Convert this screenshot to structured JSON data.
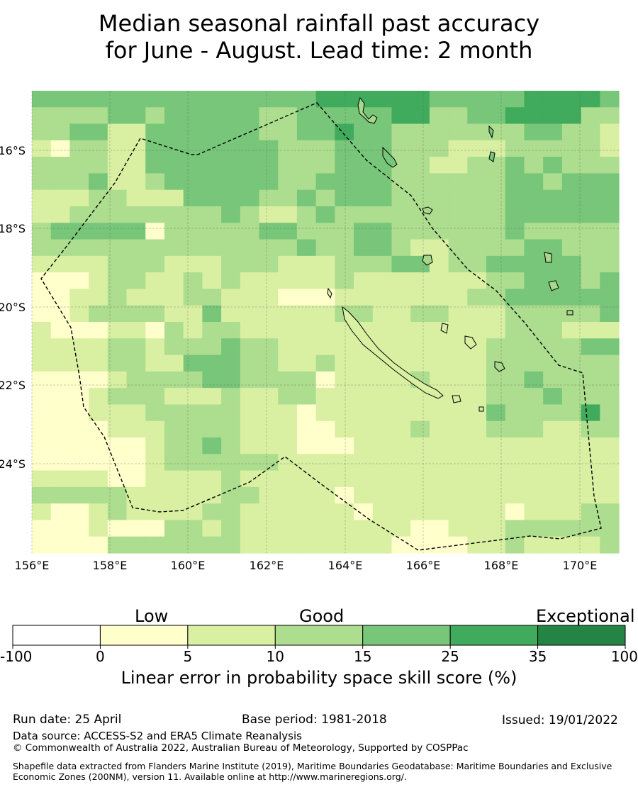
{
  "title_line1": "Median seasonal rainfall past accuracy",
  "title_line2": "for June - August. Lead time: 2 month",
  "map": {
    "lat_labels": [
      "16°S",
      "18°S",
      "20°S",
      "22°S",
      "24°S"
    ],
    "lon_labels": [
      "156°E",
      "158°E",
      "160°E",
      "162°E",
      "164°E",
      "166°E",
      "168°E",
      "170°E"
    ],
    "palette": [
      "#ffffff",
      "#ffffcc",
      "#d9f0a3",
      "#addd8e",
      "#78c679",
      "#41ab5d",
      "#238443"
    ],
    "grid_rows": [
      "4444444444444445555554444455554",
      "3333443444443344444553344555533",
      "3344224444443344544333333344332",
      "2133224444444333444333222333332",
      "3333224444444333444332233434333",
      "3334223444444334444333333443444",
      "2223322244443343444333333444444",
      "2233333333432234333333333444444",
      "3444441333334433344333333433333",
      "3333333333333343344322333344333",
      "2222333222333222333442334444433",
      "1112332232322222322222223344434",
      "1122322233222111222222233444444",
      "1123333224222222332233222333334",
      "2111221323322222222222222333222",
      "2222332333433222222222223333344",
      "2222332244433223222222223333333",
      "1111233334433331222232223343333",
      "1112333222322332222222223334333",
      "1112223333322212222222224333353",
      "1111222333322211222232223332233",
      "1111112334322211122222222222222",
      "1111112333333222222222222222222",
      "2222112222322222222222222222222",
      "3333322222332222122222222222222",
      "2112322223322222212222222122233",
      "1112111332322222222211222333333",
      "1111333333322222222111122322223"
    ]
  },
  "colorbar": {
    "categories": [
      "Low",
      "Good",
      "Exceptional"
    ],
    "ticks": [
      "-100",
      "0",
      "5",
      "10",
      "15",
      "25",
      "35",
      "100"
    ],
    "label": "Linear error in probability space skill score (%)"
  },
  "footer": {
    "run_date": "Run date: 25 April",
    "base_period": "Base period: 1981-2018",
    "issued": "Issued: 19/01/2022",
    "data_source": "Data source: ACCESS-S2 and ERA5 Climate Reanalysis",
    "copyright": "© Commonwealth of Australia 2022, Australian Bureau of Meteorology, Supported by COSPPac",
    "shapefile": "Shapefile data extracted from Flanders Marine Institute (2019), Maritime Boundaries Geodatabase: Maritime Boundaries and Exclusive Economic Zones (200NM), version 11. Available online at http://www.marineregions.org/."
  }
}
